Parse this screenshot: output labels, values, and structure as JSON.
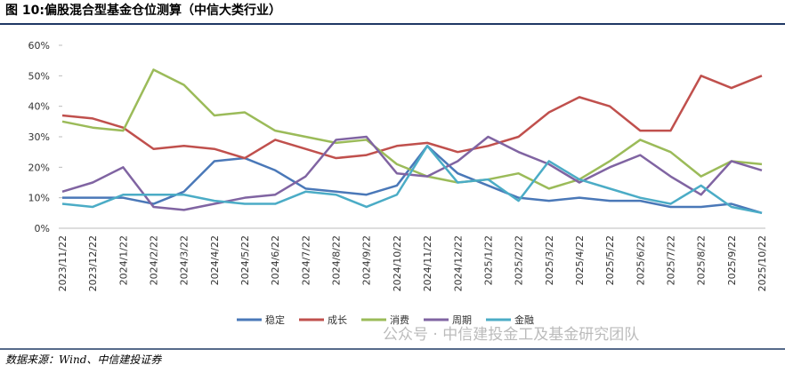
{
  "chart_data": {
    "type": "line",
    "title": "图 10:偏股混合型基金仓位测算（中信大类行业）",
    "categories": [
      "2023/11/22",
      "2023/12/22",
      "2024/1/22",
      "2024/2/22",
      "2024/3/22",
      "2024/4/22",
      "2024/5/22",
      "2024/6/22",
      "2024/7/22",
      "2024/8/22",
      "2024/9/22",
      "2024/10/22",
      "2024/11/22",
      "2024/12/22",
      "2025/1/22",
      "2025/2/22",
      "2025/3/22",
      "2025/4/22",
      "2025/5/22",
      "2025/6/22",
      "2025/7/22",
      "2025/8/22",
      "2025/9/22",
      "2025/10/22"
    ],
    "series": [
      {
        "name": "稳定",
        "color": "#4a78b8",
        "values": [
          10,
          10,
          10,
          8,
          12,
          22,
          23,
          19,
          13,
          12,
          11,
          14,
          27,
          18,
          14,
          10,
          9,
          10,
          9,
          9,
          7,
          7,
          8,
          5
        ]
      },
      {
        "name": "成长",
        "color": "#c0504d",
        "values": [
          37,
          36,
          33,
          26,
          27,
          26,
          23,
          29,
          26,
          23,
          24,
          27,
          28,
          25,
          27,
          30,
          38,
          43,
          40,
          32,
          32,
          50,
          46,
          50
        ]
      },
      {
        "name": "消费",
        "color": "#9bbb59",
        "values": [
          35,
          33,
          32,
          52,
          47,
          37,
          38,
          32,
          30,
          28,
          29,
          21,
          17,
          15,
          16,
          18,
          13,
          16,
          22,
          29,
          25,
          17,
          22,
          21
        ]
      },
      {
        "name": "周期",
        "color": "#8064a2",
        "values": [
          12,
          15,
          20,
          7,
          6,
          8,
          10,
          11,
          17,
          29,
          30,
          18,
          17,
          22,
          30,
          25,
          21,
          15,
          20,
          24,
          17,
          11,
          22,
          19
        ]
      },
      {
        "name": "金融",
        "color": "#4bacc6",
        "values": [
          8,
          7,
          11,
          11,
          11,
          9,
          8,
          8,
          12,
          11,
          7,
          11,
          27,
          15,
          16,
          9,
          22,
          16,
          13,
          10,
          8,
          14,
          7,
          5
        ]
      }
    ],
    "ylim": [
      0,
      60
    ],
    "yticks": [
      {
        "value": 0,
        "label": "0%"
      },
      {
        "value": 10,
        "label": "10%"
      },
      {
        "value": 20,
        "label": "20%"
      },
      {
        "value": 30,
        "label": "30%"
      },
      {
        "value": 40,
        "label": "40%"
      },
      {
        "value": 50,
        "label": "50%"
      },
      {
        "value": 60,
        "label": "60%"
      }
    ],
    "source": "数据来源：Wind、中信建投证券",
    "watermark": "公众号 · 中信建投金工及基金研究团队"
  }
}
